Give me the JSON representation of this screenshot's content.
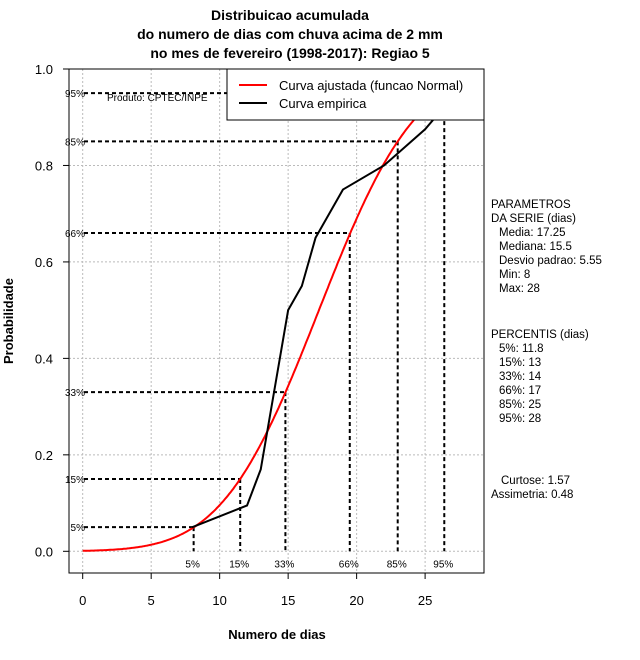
{
  "chart_data": {
    "type": "line",
    "title_lines": [
      "Distribuicao acumulada",
      "do numero de dias com chuva acima de 2 mm",
      "no mes de fevereiro (1998-2017): Regiao 5"
    ],
    "xlabel": "Numero de dias",
    "ylabel": "Probabilidade",
    "xlim": [
      -1,
      29.3
    ],
    "ylim": [
      -0.045,
      1.0
    ],
    "x_ticks": [
      0,
      5,
      10,
      15,
      20,
      25
    ],
    "y_ticks": [
      0.0,
      0.2,
      0.4,
      0.6,
      0.8,
      1.0
    ],
    "y_tick_labels": [
      "0.0",
      "0.2",
      "0.4",
      "0.6",
      "0.8",
      "1.0"
    ],
    "grid": true,
    "credit": "Produto: CPTEC/INPE",
    "legend": {
      "placement": "top-right",
      "entries": [
        {
          "label": "Curva ajustada (funcao Normal)",
          "color": "#ff0000"
        },
        {
          "label": "Curva empirica",
          "color": "#000000"
        }
      ]
    },
    "series": [
      {
        "name": "Curva ajustada (funcao Normal)",
        "color": "#ff0000",
        "distribution": "normal",
        "mean": 17.25,
        "sd": 5.55,
        "x_range": [
          0,
          28
        ]
      },
      {
        "name": "Curva empirica",
        "color": "#000000",
        "x": [
          8,
          12,
          13,
          15,
          16,
          17,
          19,
          22,
          25,
          28
        ],
        "y": [
          0.05,
          0.095,
          0.17,
          0.5,
          0.55,
          0.65,
          0.75,
          0.8,
          0.875,
          0.975
        ]
      }
    ],
    "percentile_lines": [
      {
        "label": "5%",
        "p": 0.05,
        "x": 8.1
      },
      {
        "label": "15%",
        "p": 0.15,
        "x": 11.5
      },
      {
        "label": "33%",
        "p": 0.33,
        "x": 14.8
      },
      {
        "label": "66%",
        "p": 0.66,
        "x": 19.5
      },
      {
        "label": "85%",
        "p": 0.85,
        "x": 23.0
      },
      {
        "label": "95%",
        "p": 0.95,
        "x": 26.4
      }
    ]
  },
  "side_panel": {
    "params_title": [
      "PARAMETROS",
      "DA SERIE (dias)"
    ],
    "params": [
      "Media: 17.25",
      "Mediana: 15.5",
      "Desvio padrao: 5.55",
      "Min: 8",
      "Max: 28"
    ],
    "percentis_title": "PERCENTIS (dias)",
    "percentis": [
      "5%: 11.8",
      "15%: 13",
      "33%: 14",
      "66%: 17",
      "85%: 25",
      "95%: 28"
    ],
    "curtose": "Curtose: 1.57",
    "assimetria": "Assimetria: 0.48"
  }
}
